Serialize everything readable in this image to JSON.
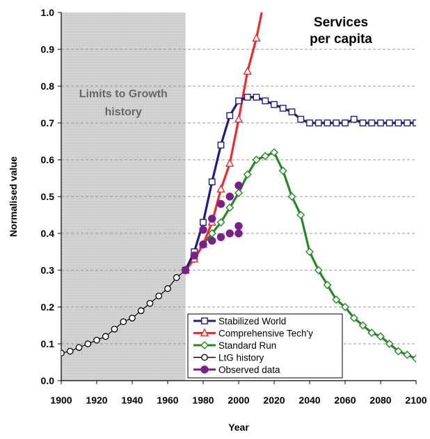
{
  "chart_data": {
    "type": "line",
    "title": "Services\nper capita",
    "xlabel": "Year",
    "ylabel": "Normalised value",
    "xlim": [
      1900,
      2100
    ],
    "ylim": [
      0,
      1.0
    ],
    "x_ticks": [
      1900,
      1920,
      1940,
      1960,
      1980,
      2000,
      2020,
      2040,
      2060,
      2080,
      2100
    ],
    "y_ticks": [
      0.0,
      0.1,
      0.2,
      0.3,
      0.4,
      0.5,
      0.6,
      0.7,
      0.8,
      0.9,
      1.0
    ],
    "y_tick_labels": [
      "0.0",
      "0.1",
      "0.2",
      "0.3",
      "0.4",
      "0.5",
      "0.6",
      "0.7",
      "0.8",
      "0.9",
      "1.0"
    ],
    "grid": "horizontal dashed",
    "shaded_region": {
      "x_range": [
        1900,
        1970
      ],
      "label": "Limits to Growth\nhistory"
    },
    "legend": {
      "position": "bottom-right"
    },
    "series": [
      {
        "name": "Stabilized World",
        "color": "#1c1c8c",
        "marker": "square",
        "x": [
          1970,
          1975,
          1980,
          1985,
          1990,
          1995,
          2000,
          2005,
          2010,
          2015,
          2020,
          2025,
          2030,
          2035,
          2040,
          2045,
          2050,
          2055,
          2060,
          2065,
          2070,
          2075,
          2080,
          2085,
          2090,
          2095,
          2100
        ],
        "y": [
          0.3,
          0.35,
          0.43,
          0.54,
          0.64,
          0.72,
          0.76,
          0.77,
          0.77,
          0.76,
          0.75,
          0.74,
          0.73,
          0.71,
          0.7,
          0.7,
          0.7,
          0.7,
          0.7,
          0.71,
          0.7,
          0.7,
          0.7,
          0.7,
          0.7,
          0.7,
          0.7
        ]
      },
      {
        "name": "Comprehensive Tech'y",
        "color": "#ee2a2a",
        "marker": "triangle",
        "x": [
          1970,
          1975,
          1980,
          1985,
          1990,
          1995,
          2000,
          2005,
          2010,
          2013
        ],
        "y": [
          0.3,
          0.33,
          0.37,
          0.43,
          0.52,
          0.59,
          0.71,
          0.84,
          0.93,
          1.0
        ]
      },
      {
        "name": "Standard Run",
        "color": "#1e8c1e",
        "marker": "diamond",
        "x": [
          1970,
          1975,
          1980,
          1985,
          1990,
          1995,
          2000,
          2005,
          2010,
          2015,
          2020,
          2025,
          2030,
          2035,
          2040,
          2045,
          2050,
          2055,
          2060,
          2065,
          2070,
          2075,
          2080,
          2085,
          2090,
          2095,
          2100
        ],
        "y": [
          0.3,
          0.33,
          0.37,
          0.4,
          0.43,
          0.47,
          0.51,
          0.56,
          0.6,
          0.61,
          0.62,
          0.57,
          0.5,
          0.45,
          0.35,
          0.3,
          0.26,
          0.22,
          0.2,
          0.17,
          0.15,
          0.13,
          0.12,
          0.1,
          0.08,
          0.07,
          0.06
        ]
      },
      {
        "name": "LtG history",
        "color": "#000000",
        "marker": "circle",
        "x": [
          1900,
          1905,
          1910,
          1915,
          1920,
          1925,
          1930,
          1935,
          1940,
          1945,
          1950,
          1955,
          1960,
          1965,
          1970
        ],
        "y": [
          0.075,
          0.08,
          0.09,
          0.1,
          0.11,
          0.12,
          0.14,
          0.16,
          0.17,
          0.19,
          0.21,
          0.23,
          0.25,
          0.28,
          0.3
        ]
      },
      {
        "name": "Observed data",
        "color": "#7b1f8c",
        "marker": "filled-circle",
        "points": [
          [
            1970,
            0.3
          ],
          [
            1975,
            0.34
          ],
          [
            1980,
            0.37
          ],
          [
            1980,
            0.41
          ],
          [
            1985,
            0.38
          ],
          [
            1985,
            0.44
          ],
          [
            1990,
            0.39
          ],
          [
            1990,
            0.48
          ],
          [
            1995,
            0.4
          ],
          [
            1995,
            0.5
          ],
          [
            2000,
            0.4
          ],
          [
            2000,
            0.42
          ],
          [
            2000,
            0.53
          ]
        ]
      }
    ]
  }
}
